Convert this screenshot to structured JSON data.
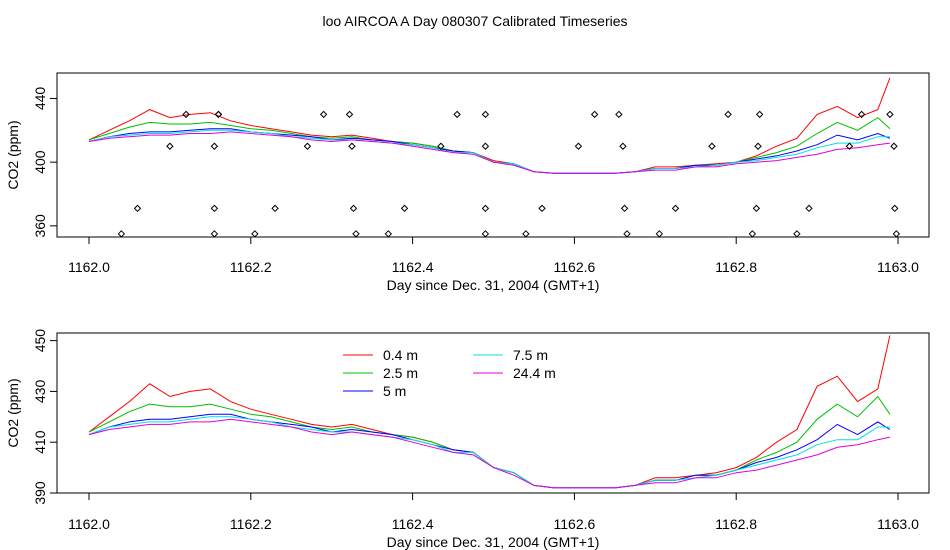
{
  "figure_title": "loo AIRCOA A  Day 080307  Calibrated Timeseries",
  "chart_data": [
    {
      "type": "line",
      "xlabel": "Day since Dec. 31, 2004 (GMT+1)",
      "ylabel": "CO2 (ppm)",
      "xlim": [
        1162.0,
        1163.0
      ],
      "ylim": [
        353,
        456
      ],
      "xticks": [
        1162.0,
        1162.2,
        1162.4,
        1162.6,
        1162.8,
        1163.0
      ],
      "xtick_labels": [
        "1162.0",
        "1162.2",
        "1162.4",
        "1162.6",
        "1162.8",
        "1163.0"
      ],
      "yticks": [
        360,
        400,
        440
      ],
      "ytick_labels": [
        "360",
        "400",
        "440"
      ],
      "legend": false,
      "x": [
        1162.0,
        1162.025,
        1162.05,
        1162.075,
        1162.1,
        1162.125,
        1162.15,
        1162.175,
        1162.2,
        1162.225,
        1162.25,
        1162.275,
        1162.3,
        1162.325,
        1162.35,
        1162.375,
        1162.4,
        1162.425,
        1162.45,
        1162.475,
        1162.5,
        1162.525,
        1162.55,
        1162.575,
        1162.6,
        1162.625,
        1162.65,
        1162.675,
        1162.7,
        1162.725,
        1162.75,
        1162.775,
        1162.8,
        1162.825,
        1162.85,
        1162.875,
        1162.9,
        1162.925,
        1162.95,
        1162.975,
        1162.99
      ],
      "series": [
        {
          "name": "0.4 m",
          "color": "#ff0000",
          "values": [
            414,
            420,
            426,
            433,
            428,
            430,
            431,
            426,
            423,
            421,
            419,
            417,
            416,
            417,
            415,
            413,
            412,
            410,
            407,
            406,
            401,
            399,
            394,
            393,
            393,
            393,
            393,
            394,
            397,
            397,
            398,
            399,
            400,
            404,
            410,
            415,
            430,
            435,
            428,
            433,
            453
          ]
        },
        {
          "name": "2.5 m",
          "color": "#00c000",
          "values": [
            414,
            418,
            422,
            425,
            424,
            424,
            425,
            423,
            421,
            420,
            418,
            416,
            415,
            416,
            414,
            413,
            412,
            410,
            407,
            406,
            400,
            399,
            394,
            393,
            393,
            393,
            393,
            394,
            396,
            396,
            398,
            398,
            400,
            403,
            406,
            410,
            418,
            425,
            420,
            428,
            421
          ]
        },
        {
          "name": "5 m",
          "color": "#0000ff",
          "values": [
            413,
            416,
            418,
            419,
            419,
            420,
            421,
            421,
            419,
            418,
            417,
            416,
            414,
            415,
            414,
            413,
            411,
            409,
            407,
            406,
            400,
            399,
            394,
            393,
            393,
            393,
            393,
            394,
            396,
            396,
            398,
            398,
            400,
            402,
            404,
            407,
            411,
            417,
            414,
            418,
            415
          ]
        },
        {
          "name": "7.5 m",
          "color": "#00e0e0",
          "values": [
            413,
            416,
            417,
            418,
            418,
            419,
            420,
            420,
            419,
            418,
            416,
            415,
            414,
            414,
            413,
            412,
            411,
            409,
            406,
            406,
            400,
            399,
            394,
            393,
            393,
            393,
            393,
            394,
            396,
            396,
            397,
            398,
            400,
            401,
            403,
            405,
            409,
            412,
            412,
            416,
            416
          ]
        },
        {
          "name": "24.4 m",
          "color": "#e000e0",
          "values": [
            413,
            415,
            416,
            417,
            417,
            418,
            418,
            419,
            418,
            417,
            416,
            414,
            413,
            414,
            413,
            412,
            410,
            408,
            406,
            405,
            400,
            398,
            394,
            393,
            393,
            393,
            393,
            394,
            395,
            395,
            397,
            397,
            399,
            400,
            401,
            403,
            405,
            408,
            409,
            411,
            412
          ]
        }
      ],
      "markers": {
        "symbol": "open-diamond",
        "x": [
          1162.04,
          1162.06,
          1162.1,
          1162.12,
          1162.155,
          1162.155,
          1162.155,
          1162.16,
          1162.16,
          1162.205,
          1162.23,
          1162.27,
          1162.29,
          1162.322,
          1162.325,
          1162.327,
          1162.33,
          1162.37,
          1162.39,
          1162.435,
          1162.455,
          1162.49,
          1162.49,
          1162.49,
          1162.49,
          1162.54,
          1162.56,
          1162.605,
          1162.625,
          1162.655,
          1162.66,
          1162.662,
          1162.665,
          1162.705,
          1162.725,
          1162.77,
          1162.79,
          1162.82,
          1162.825,
          1162.827,
          1162.829,
          1162.875,
          1162.89,
          1162.94,
          1162.955,
          1162.99,
          1162.995,
          1162.996,
          1162.998
        ],
        "y": [
          355,
          371,
          410,
          430,
          355,
          371,
          410,
          430,
          430,
          355,
          371,
          410,
          430,
          430,
          410,
          371,
          355,
          355,
          371,
          410,
          430,
          355,
          371,
          410,
          430,
          355,
          371,
          410,
          430,
          430,
          410,
          371,
          355,
          355,
          371,
          410,
          430,
          355,
          371,
          410,
          430,
          355,
          371,
          410,
          430,
          430,
          410,
          371,
          355
        ]
      }
    },
    {
      "type": "line",
      "xlabel": "Day since Dec. 31, 2004 (GMT+1)",
      "ylabel": "CO2 (ppm)",
      "xlim": [
        1162.0,
        1163.0
      ],
      "ylim": [
        390,
        453
      ],
      "xticks": [
        1162.0,
        1162.2,
        1162.4,
        1162.6,
        1162.8,
        1163.0
      ],
      "xtick_labels": [
        "1162.0",
        "1162.2",
        "1162.4",
        "1162.6",
        "1162.8",
        "1163.0"
      ],
      "yticks": [
        390,
        410,
        430,
        450
      ],
      "ytick_labels": [
        "390",
        "410",
        "430",
        "450"
      ],
      "legend": true,
      "legend_placement": "top-left",
      "x": [
        1162.0,
        1162.025,
        1162.05,
        1162.075,
        1162.1,
        1162.125,
        1162.15,
        1162.175,
        1162.2,
        1162.225,
        1162.25,
        1162.275,
        1162.3,
        1162.325,
        1162.35,
        1162.375,
        1162.4,
        1162.425,
        1162.45,
        1162.475,
        1162.5,
        1162.525,
        1162.55,
        1162.575,
        1162.6,
        1162.625,
        1162.65,
        1162.675,
        1162.7,
        1162.725,
        1162.75,
        1162.775,
        1162.8,
        1162.825,
        1162.85,
        1162.875,
        1162.9,
        1162.925,
        1162.95,
        1162.975,
        1162.99
      ],
      "series": [
        {
          "name": "0.4 m",
          "color": "#ff0000",
          "values": [
            414,
            420,
            426,
            433,
            428,
            430,
            431,
            426,
            423,
            421,
            419,
            417,
            416,
            417,
            415,
            413,
            412,
            410,
            407,
            406,
            400,
            398,
            393,
            392,
            392,
            392,
            392,
            393,
            396,
            396,
            397,
            398,
            400,
            404,
            410,
            415,
            432,
            436,
            426,
            431,
            452
          ]
        },
        {
          "name": "2.5 m",
          "color": "#00c000",
          "values": [
            414,
            418,
            422,
            425,
            424,
            424,
            425,
            423,
            421,
            420,
            418,
            416,
            415,
            416,
            414,
            413,
            412,
            410,
            407,
            406,
            400,
            398,
            393,
            392,
            392,
            392,
            392,
            393,
            395,
            395,
            397,
            397,
            399,
            403,
            406,
            410,
            419,
            425,
            420,
            428,
            421
          ]
        },
        {
          "name": "5 m",
          "color": "#0000ff",
          "values": [
            413,
            416,
            418,
            419,
            419,
            420,
            421,
            421,
            419,
            418,
            417,
            416,
            414,
            415,
            414,
            413,
            411,
            409,
            407,
            406,
            400,
            398,
            393,
            392,
            392,
            392,
            392,
            393,
            395,
            395,
            397,
            397,
            399,
            402,
            404,
            407,
            411,
            417,
            413,
            418,
            415
          ]
        },
        {
          "name": "7.5 m",
          "color": "#00e0e0",
          "values": [
            413,
            416,
            417,
            418,
            418,
            419,
            420,
            420,
            419,
            418,
            416,
            415,
            414,
            414,
            413,
            412,
            411,
            409,
            406,
            406,
            400,
            398,
            393,
            392,
            392,
            392,
            392,
            393,
            395,
            395,
            396,
            397,
            399,
            401,
            403,
            405,
            409,
            411,
            411,
            416,
            416
          ]
        },
        {
          "name": "24.4 m",
          "color": "#e000e0",
          "values": [
            413,
            415,
            416,
            417,
            417,
            418,
            418,
            419,
            418,
            417,
            416,
            414,
            413,
            414,
            413,
            412,
            410,
            408,
            406,
            405,
            400,
            397,
            393,
            392,
            392,
            392,
            392,
            393,
            394,
            394,
            396,
            396,
            398,
            399,
            401,
            403,
            405,
            408,
            409,
            411,
            412
          ]
        }
      ]
    }
  ]
}
